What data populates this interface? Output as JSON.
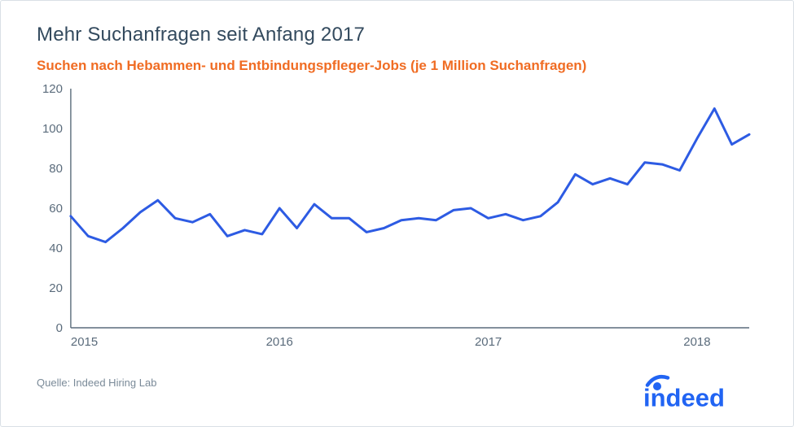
{
  "title": "Mehr Suchanfragen seit Anfang 2017",
  "subtitle": "Suchen nach Hebammen- und Entbindungspfleger-Jobs (je 1 Million Suchanfragen)",
  "source": "Quelle: Indeed Hiring Lab",
  "chart": {
    "type": "line",
    "x_min": 0,
    "x_max": 39,
    "ylim": [
      0,
      120
    ],
    "ytick_step": 20,
    "yticks": [
      0,
      20,
      40,
      60,
      80,
      100,
      120
    ],
    "xticks": [
      {
        "pos": 0,
        "label": "2015"
      },
      {
        "pos": 12,
        "label": "2016"
      },
      {
        "pos": 24,
        "label": "2017"
      },
      {
        "pos": 36,
        "label": "2018"
      }
    ],
    "values": [
      56,
      46,
      43,
      50,
      58,
      64,
      55,
      53,
      57,
      46,
      49,
      47,
      60,
      50,
      62,
      55,
      55,
      48,
      50,
      54,
      55,
      54,
      59,
      60,
      55,
      57,
      54,
      56,
      63,
      77,
      72,
      75,
      72,
      83,
      82,
      79,
      95,
      110,
      92,
      97
    ],
    "line_color": "#2d5be3",
    "line_width": 3,
    "axis_color": "#5a6b7b",
    "axis_width": 1.4,
    "label_color": "#5a6b7b",
    "label_fontsize": 15,
    "grid": false,
    "background_color": "#ffffff"
  },
  "colors": {
    "title": "#334a5e",
    "subtitle": "#f06c23",
    "brand": "#2164f3",
    "source": "#7a8a98"
  },
  "brand": {
    "name": "indeed"
  }
}
